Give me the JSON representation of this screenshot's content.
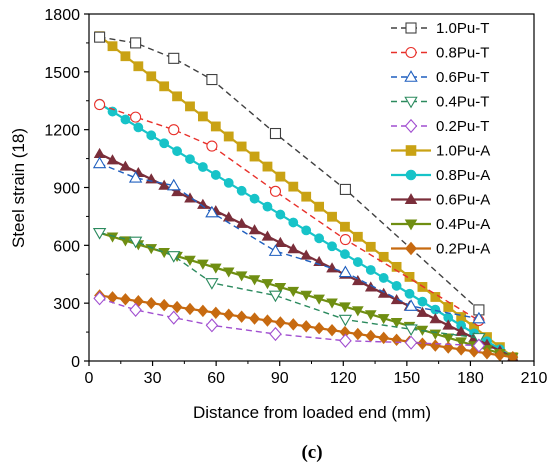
{
  "chart_data": {
    "type": "line",
    "title": "",
    "caption": "(c)",
    "xlabel": "Distance from loaded end (mm)",
    "ylabel": "Steel strain (18)",
    "xlim": [
      0,
      210
    ],
    "ylim": [
      0,
      1800
    ],
    "xticks": [
      0,
      30,
      60,
      90,
      120,
      150,
      180,
      210
    ],
    "yticks": [
      0,
      300,
      600,
      900,
      1200,
      1500,
      1800
    ],
    "grid": false,
    "legend_position": "top-right",
    "series": [
      {
        "name": "1.0Pu-T",
        "style": "test",
        "marker": "square",
        "color": "#404040",
        "x": [
          5,
          22,
          40,
          58,
          88,
          121,
          184
        ],
        "y": [
          1680,
          1650,
          1570,
          1460,
          1180,
          890,
          265
        ]
      },
      {
        "name": "0.8Pu-T",
        "style": "test",
        "marker": "circle",
        "color": "#e8302a",
        "x": [
          5,
          22,
          40,
          58,
          88,
          121,
          184
        ],
        "y": [
          1330,
          1265,
          1200,
          1115,
          880,
          630,
          210
        ]
      },
      {
        "name": "0.6Pu-T",
        "style": "test",
        "marker": "triangle-up",
        "color": "#1f5fbf",
        "x": [
          5,
          22,
          40,
          58,
          88,
          121,
          152,
          184
        ],
        "y": [
          1025,
          950,
          910,
          770,
          570,
          460,
          285,
          220
        ]
      },
      {
        "name": "0.4Pu-T",
        "style": "test",
        "marker": "triangle-down",
        "color": "#2b8a5e",
        "x": [
          5,
          22,
          40,
          58,
          88,
          121,
          152,
          184
        ],
        "y": [
          665,
          620,
          545,
          405,
          340,
          215,
          165,
          120
        ]
      },
      {
        "name": "0.2Pu-T",
        "style": "test",
        "marker": "diamond",
        "color": "#a14fd0",
        "x": [
          5,
          22,
          40,
          58,
          88,
          121,
          152,
          184
        ],
        "y": [
          325,
          265,
          225,
          185,
          140,
          105,
          95,
          80
        ]
      },
      {
        "name": "1.0Pu-A",
        "style": "analysis",
        "marker": "square",
        "color": "#c9a214",
        "x": [
          5,
          200
        ],
        "y": [
          1685,
          20
        ]
      },
      {
        "name": "0.8Pu-A",
        "style": "analysis",
        "marker": "circle",
        "color": "#17c3c8",
        "x": [
          5,
          200
        ],
        "y": [
          1335,
          20
        ]
      },
      {
        "name": "0.6Pu-A",
        "style": "analysis",
        "marker": "triangle-up",
        "color": "#7a2e3a",
        "x": [
          5,
          200
        ],
        "y": [
          1075,
          20
        ]
      },
      {
        "name": "0.4Pu-A",
        "style": "analysis",
        "marker": "triangle-down",
        "color": "#6f8e12",
        "x": [
          5,
          200
        ],
        "y": [
          665,
          20
        ]
      },
      {
        "name": "0.2Pu-A",
        "style": "analysis",
        "marker": "diamond",
        "color": "#c76a10",
        "x": [
          5,
          200
        ],
        "y": [
          340,
          20
        ]
      }
    ]
  }
}
